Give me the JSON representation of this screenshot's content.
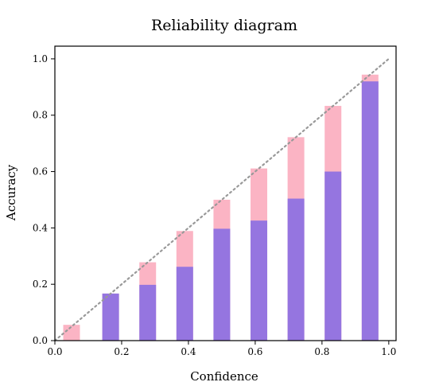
{
  "chart_data": {
    "type": "bar",
    "title": "Reliability diagram",
    "xlabel": "Confidence",
    "ylabel": "Accuracy",
    "xlim": [
      0.0,
      1.0
    ],
    "ylim": [
      0.0,
      1.0
    ],
    "xticks": [
      "0.0",
      "0.2",
      "0.4",
      "0.6",
      "0.8",
      "1.0"
    ],
    "yticks": [
      "0.0",
      "0.2",
      "0.4",
      "0.6",
      "0.8",
      "1.0"
    ],
    "bin_centers": [
      0.05,
      0.167,
      0.278,
      0.389,
      0.5,
      0.611,
      0.722,
      0.833,
      0.944
    ],
    "bar_width": 0.05,
    "series": [
      {
        "values": [
          0.056,
          0.167,
          0.278,
          0.389,
          0.5,
          0.611,
          0.722,
          0.833,
          0.944
        ],
        "color": "#fbb4c4"
      },
      {
        "values": [
          0.0,
          0.167,
          0.198,
          0.262,
          0.397,
          0.426,
          0.504,
          0.6,
          0.92
        ],
        "color": "#9575e0"
      }
    ],
    "reference_line": {
      "from": [
        0,
        0
      ],
      "to": [
        1,
        1
      ],
      "style": "dotted",
      "color": "#999999"
    },
    "grid": false,
    "legend": false
  }
}
